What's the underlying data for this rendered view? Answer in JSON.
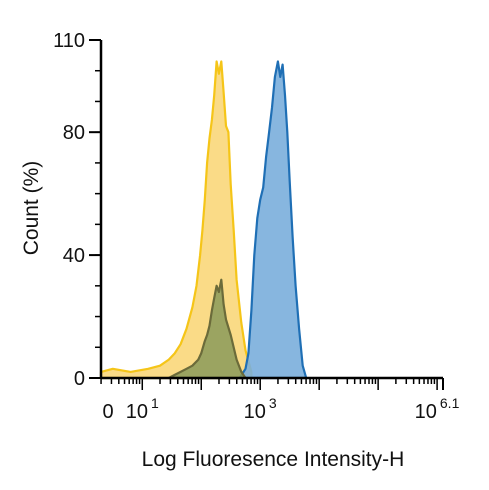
{
  "chart_data": {
    "type": "area",
    "xlabel": "Log Fluoresence Intensity-H",
    "ylabel": "Count  (%)",
    "x_scale": "log",
    "x_ticks": [
      {
        "value": 0,
        "base": "0",
        "exp": ""
      },
      {
        "value": 10,
        "base": "10",
        "exp": "1"
      },
      {
        "value": 1000,
        "base": "10",
        "exp": "3"
      },
      {
        "value": 1258925,
        "base": "10",
        "exp": "6.1"
      }
    ],
    "y_ticks": [
      "0",
      "40",
      "80",
      "110"
    ],
    "ylim": [
      0,
      110
    ],
    "grid": false,
    "series": [
      {
        "color": "#f5c518",
        "fill": "#f9d77a",
        "points": [
          [
            0.3,
            2
          ],
          [
            0.5,
            3
          ],
          [
            0.8,
            2
          ],
          [
            1.1,
            3
          ],
          [
            1.3,
            4
          ],
          [
            1.45,
            6
          ],
          [
            1.55,
            8
          ],
          [
            1.65,
            11
          ],
          [
            1.75,
            16
          ],
          [
            1.85,
            23
          ],
          [
            1.92,
            30
          ],
          [
            1.98,
            40
          ],
          [
            2.02,
            48
          ],
          [
            2.06,
            58
          ],
          [
            2.1,
            70
          ],
          [
            2.14,
            78
          ],
          [
            2.18,
            84
          ],
          [
            2.22,
            92
          ],
          [
            2.26,
            103
          ],
          [
            2.3,
            99
          ],
          [
            2.34,
            103
          ],
          [
            2.38,
            93
          ],
          [
            2.42,
            82
          ],
          [
            2.46,
            80
          ],
          [
            2.5,
            63
          ],
          [
            2.55,
            48
          ],
          [
            2.6,
            32
          ],
          [
            2.68,
            18
          ],
          [
            2.75,
            9
          ],
          [
            2.85,
            2
          ]
        ]
      },
      {
        "color": "#1f6fb5",
        "fill": "#7aaedb",
        "points": [
          [
            2.65,
            0
          ],
          [
            2.75,
            3
          ],
          [
            2.8,
            8
          ],
          [
            2.85,
            22
          ],
          [
            2.9,
            40
          ],
          [
            2.95,
            52
          ],
          [
            3.0,
            58
          ],
          [
            3.05,
            62
          ],
          [
            3.1,
            72
          ],
          [
            3.15,
            80
          ],
          [
            3.2,
            88
          ],
          [
            3.25,
            98
          ],
          [
            3.3,
            103
          ],
          [
            3.34,
            98
          ],
          [
            3.38,
            102
          ],
          [
            3.42,
            92
          ],
          [
            3.46,
            80
          ],
          [
            3.5,
            64
          ],
          [
            3.55,
            46
          ],
          [
            3.6,
            30
          ],
          [
            3.66,
            16
          ],
          [
            3.72,
            4
          ],
          [
            3.78,
            0
          ]
        ]
      },
      {
        "color": "#6b6b3a",
        "fill": "#8a9a5b",
        "points": [
          [
            1.45,
            0
          ],
          [
            1.55,
            1
          ],
          [
            1.65,
            2
          ],
          [
            1.75,
            3
          ],
          [
            1.85,
            4
          ],
          [
            1.95,
            6
          ],
          [
            2.0,
            8
          ],
          [
            2.06,
            12
          ],
          [
            2.1,
            14
          ],
          [
            2.14,
            17
          ],
          [
            2.18,
            22
          ],
          [
            2.22,
            26
          ],
          [
            2.26,
            30
          ],
          [
            2.3,
            28
          ],
          [
            2.34,
            32
          ],
          [
            2.38,
            24
          ],
          [
            2.42,
            19
          ],
          [
            2.5,
            14
          ],
          [
            2.6,
            6
          ],
          [
            2.68,
            2
          ],
          [
            2.75,
            0
          ]
        ]
      }
    ]
  }
}
